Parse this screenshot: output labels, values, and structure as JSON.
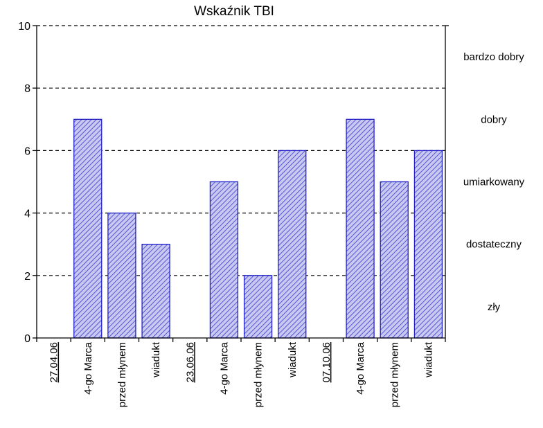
{
  "chart_data": {
    "type": "bar",
    "title": "Wskaźnik TBI",
    "xlabel": "",
    "ylabel": "",
    "ylim": [
      0,
      10
    ],
    "y_ticks": [
      "0",
      "2",
      "4",
      "6",
      "8",
      "10"
    ],
    "grid": "dashed horizontal lines at 2, 4, 6, 8, 10",
    "categories": [
      "27.04.06",
      "4-go Marca",
      "przed młynem",
      "wiadukt",
      "23.06.06",
      "4-go Marca",
      "przed młynem",
      "wiadukt",
      "07.10.06",
      "4-go Marca",
      "przed młynem",
      "wiadukt"
    ],
    "underlined_categories": [
      "27.04.06",
      "23.06.06",
      "07.10.06"
    ],
    "values": [
      null,
      7,
      4,
      3,
      null,
      5,
      2,
      6,
      null,
      7,
      5,
      6
    ],
    "class_labels": [
      {
        "label": "bardzo dobry",
        "range": [
          8,
          10
        ]
      },
      {
        "label": "dobry",
        "range": [
          6,
          8
        ]
      },
      {
        "label": "umiarkowany",
        "range": [
          4,
          6
        ]
      },
      {
        "label": "dostateczny",
        "range": [
          2,
          4
        ]
      },
      {
        "label": "zły",
        "range": [
          0,
          2
        ]
      }
    ],
    "colors": {
      "bar_fill": "#c8c8f0",
      "bar_hatch": "#3a3ad0",
      "bar_border": "#2020c8",
      "axis": "#000000"
    }
  }
}
